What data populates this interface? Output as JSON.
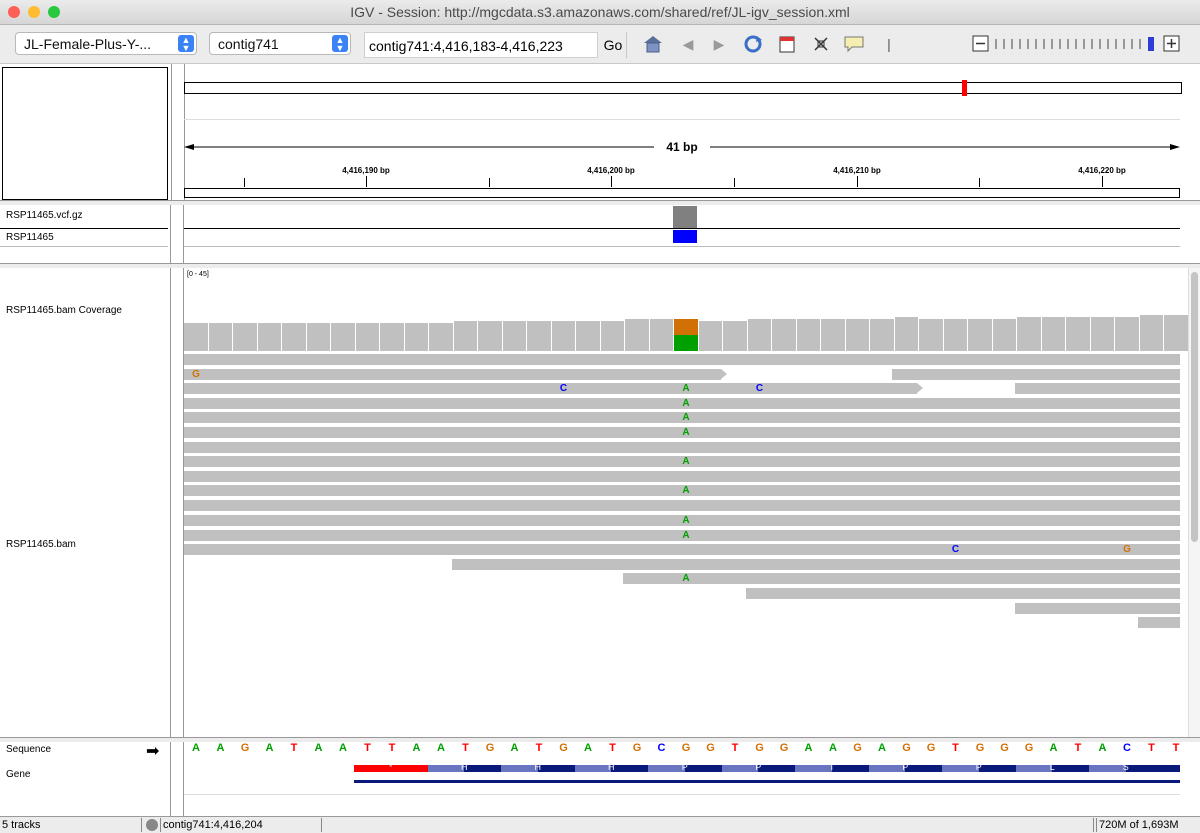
{
  "window": {
    "title": "IGV - Session: http://mgcdata.s3.amazonaws.com/shared/ref/JL-igv_session.xml"
  },
  "toolbar": {
    "genome_select": "JL-Female-Plus-Y-...",
    "chromosome_select": "contig741",
    "locus_input": "contig741:4,416,183-4,416,223",
    "go_label": "Go"
  },
  "ruler": {
    "span_label": "41 bp",
    "tick_labels": [
      "4,416,190 bp",
      "4,416,200 bp",
      "4,416,210 bp",
      "4,416,220 bp"
    ]
  },
  "tracks": {
    "vcf_name": "RSP11465.vcf.gz",
    "sample_name": "RSP11465",
    "coverage_name": "RSP11465.bam Coverage",
    "coverage_range": "[0 - 45]",
    "bam_name": "RSP11465.bam",
    "sequence_name": "Sequence",
    "gene_name": "Gene"
  },
  "sequence": [
    "A",
    "A",
    "G",
    "A",
    "T",
    "A",
    "A",
    "T",
    "T",
    "A",
    "A",
    "T",
    "G",
    "A",
    "T",
    "G",
    "A",
    "T",
    "G",
    "C",
    "G",
    "G",
    "T",
    "G",
    "G",
    "A",
    "A",
    "G",
    "A",
    "G",
    "G",
    "T",
    "G",
    "G",
    "G",
    "A",
    "T",
    "A",
    "C",
    "T",
    "T"
  ],
  "gene_aa": [
    "*",
    "H",
    "H",
    "H",
    "P",
    "P",
    "T",
    "P",
    "P",
    "L",
    "S"
  ],
  "colors": {
    "A": "#00a000",
    "C": "#0000ff",
    "G": "#d17105",
    "T": "#ff0000",
    "vcf_site": "#808080",
    "genotype": "#0000ff",
    "coverage": "#c0c0c0"
  },
  "status": {
    "tracks": "5 tracks",
    "position": "contig741:4,416,204",
    "memory": "720M of 1,693M"
  }
}
